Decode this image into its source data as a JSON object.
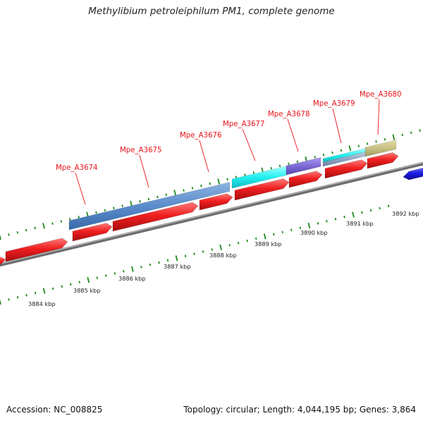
{
  "header": {
    "title": "Methylibium petroleiphilum PM1, complete genome"
  },
  "footer": {
    "accession": "Accession: NC_008825",
    "summary": "Topology: circular; Length: 4,044,195 bp; Genes: 3,864"
  },
  "colors": {
    "cds": "#f01f20",
    "cds_minus": "#1a1ae0",
    "backbone": "#8a8a8a",
    "tick": "#1d8a1d",
    "label": "#e8141a",
    "gene_steelblue": "#5a8ccc",
    "gene_cyan": "#22f0f0",
    "gene_slateblue": "#7e6ad6",
    "gene_lightslate": "#8da5c4",
    "gene_khaki": "#c8c184"
  },
  "gene_labels": [
    {
      "id": "Mpe_A3674",
      "label": "Mpe_A3674"
    },
    {
      "id": "Mpe_A3675",
      "label": "Mpe_A3675"
    },
    {
      "id": "Mpe_A3676",
      "label": "Mpe_A3676"
    },
    {
      "id": "Mpe_A3677",
      "label": "Mpe_A3677"
    },
    {
      "id": "Mpe_A3678",
      "label": "Mpe_A3678"
    },
    {
      "id": "Mpe_A3679",
      "label": "Mpe_A3679"
    },
    {
      "id": "Mpe_A3680",
      "label": "Mpe_A3680"
    }
  ],
  "kbp_ticks": [
    {
      "label": "3884 kbp"
    },
    {
      "label": "3885 kbp"
    },
    {
      "label": "3886 kbp"
    },
    {
      "label": "3887 kbp"
    },
    {
      "label": "3888 kbp"
    },
    {
      "label": "3889 kbp"
    },
    {
      "label": "3890 kbp"
    },
    {
      "label": "3891 kbp"
    },
    {
      "label": "3892 kbp"
    }
  ]
}
